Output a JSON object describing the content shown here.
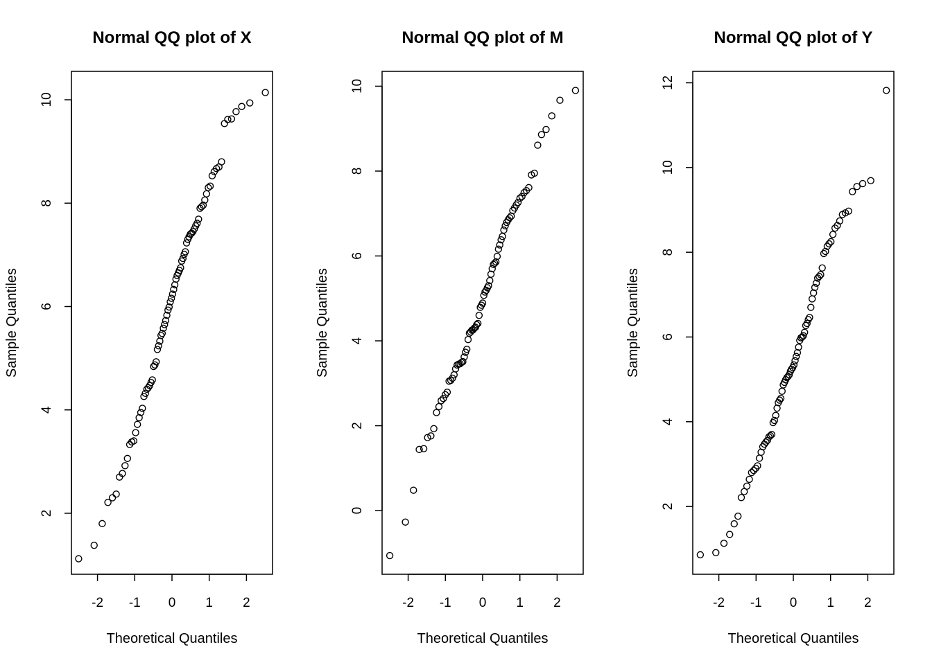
{
  "chart_data": [
    {
      "type": "scatter",
      "title": "Normal QQ plot of X",
      "xlabel": "Theoretical Quantiles",
      "ylabel": "Sample Quantiles",
      "xlim": [
        -2.7,
        2.7
      ],
      "ylim": [
        0.82,
        10.55
      ],
      "xticks": [
        -2,
        -1,
        0,
        1,
        2
      ],
      "yticks": [
        2,
        4,
        6,
        8,
        10
      ],
      "grid": false,
      "y": [
        1.12,
        1.38,
        1.8,
        2.21,
        2.3,
        2.37,
        2.7,
        2.77,
        2.92,
        3.06,
        3.33,
        3.38,
        3.4,
        3.56,
        3.72,
        3.85,
        3.95,
        4.03,
        4.26,
        4.32,
        4.4,
        4.43,
        4.47,
        4.53,
        4.58,
        4.84,
        4.87,
        4.93,
        5.17,
        5.24,
        5.33,
        5.44,
        5.48,
        5.58,
        5.65,
        5.73,
        5.83,
        5.93,
        5.99,
        6.09,
        6.16,
        6.24,
        6.33,
        6.42,
        6.53,
        6.6,
        6.65,
        6.7,
        6.75,
        6.88,
        6.93,
        7.01,
        7.06,
        7.23,
        7.3,
        7.35,
        7.4,
        7.42,
        7.45,
        7.5,
        7.56,
        7.61,
        7.69,
        7.9,
        7.93,
        7.96,
        8.06,
        8.18,
        8.3,
        8.33,
        8.53,
        8.61,
        8.67,
        8.7,
        8.8,
        9.54,
        9.62,
        9.63,
        9.77,
        9.87,
        9.94,
        10.14
      ]
    },
    {
      "type": "scatter",
      "title": "Normal QQ plot of M",
      "xlabel": "Theoretical Quantiles",
      "ylabel": "Sample Quantiles",
      "xlim": [
        -2.7,
        2.7
      ],
      "ylim": [
        -1.5,
        10.35
      ],
      "xticks": [
        -2,
        -1,
        0,
        1,
        2
      ],
      "yticks": [
        0,
        2,
        4,
        6,
        8,
        10
      ],
      "grid": false,
      "y": [
        -1.06,
        -0.27,
        0.48,
        1.44,
        1.46,
        1.72,
        1.76,
        1.93,
        2.31,
        2.45,
        2.59,
        2.64,
        2.73,
        2.79,
        3.05,
        3.07,
        3.12,
        3.2,
        3.34,
        3.43,
        3.45,
        3.46,
        3.49,
        3.51,
        3.62,
        3.73,
        3.8,
        4.03,
        4.18,
        4.21,
        4.25,
        4.26,
        4.3,
        4.32,
        4.38,
        4.41,
        4.6,
        4.79,
        4.84,
        4.89,
        5.07,
        5.15,
        5.19,
        5.25,
        5.3,
        5.42,
        5.57,
        5.7,
        5.8,
        5.83,
        5.86,
        5.99,
        6.16,
        6.26,
        6.38,
        6.46,
        6.61,
        6.71,
        6.79,
        6.85,
        6.9,
        6.94,
        7.07,
        7.13,
        7.2,
        7.26,
        7.36,
        7.4,
        7.49,
        7.54,
        7.61,
        7.91,
        7.95,
        8.61,
        8.86,
        8.98,
        9.3,
        9.67,
        9.9
      ]
    },
    {
      "type": "scatter",
      "title": "Normal QQ plot of Y",
      "xlabel": "Theoretical Quantiles",
      "ylabel": "Sample Quantiles",
      "xlim": [
        -2.7,
        2.7
      ],
      "ylim": [
        0.4,
        12.27
      ],
      "xticks": [
        -2,
        -1,
        0,
        1,
        2
      ],
      "yticks": [
        2,
        4,
        6,
        8,
        10,
        12
      ],
      "grid": false,
      "y": [
        0.86,
        0.91,
        1.13,
        1.34,
        1.59,
        1.77,
        2.21,
        2.35,
        2.48,
        2.64,
        2.8,
        2.85,
        2.9,
        2.96,
        3.14,
        3.28,
        3.41,
        3.47,
        3.52,
        3.56,
        3.64,
        3.67,
        3.7,
        3.98,
        4.03,
        4.15,
        4.32,
        4.45,
        4.51,
        4.55,
        4.72,
        4.87,
        4.93,
        4.99,
        5.04,
        5.07,
        5.11,
        5.19,
        5.24,
        5.28,
        5.34,
        5.44,
        5.54,
        5.63,
        5.76,
        5.92,
        5.98,
        6.0,
        6.03,
        6.11,
        6.27,
        6.32,
        6.41,
        6.46,
        6.7,
        6.9,
        7.04,
        7.17,
        7.27,
        7.39,
        7.43,
        7.47,
        7.63,
        7.97,
        8.02,
        8.14,
        8.2,
        8.25,
        8.42,
        8.57,
        8.63,
        8.74,
        8.89,
        8.93,
        8.97,
        9.43,
        9.55,
        9.62,
        9.69,
        11.82
      ]
    }
  ]
}
